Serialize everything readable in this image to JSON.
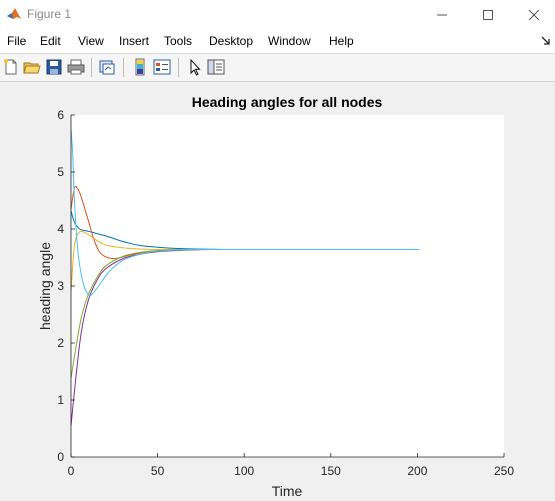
{
  "window": {
    "title": "Figure 1",
    "minimize_icon": "minimize-icon",
    "maximize_icon": "maximize-icon",
    "close_icon": "close-icon"
  },
  "menu": {
    "items": [
      "File",
      "Edit",
      "View",
      "Insert",
      "Tools",
      "Desktop",
      "Window",
      "Help"
    ]
  },
  "toolbar": {
    "icons": [
      "new-figure-icon",
      "open-icon",
      "save-icon",
      "print-icon",
      "link-plot-icon",
      "colorbar-icon",
      "legend-icon",
      "pointer-icon",
      "property-editor-icon"
    ]
  },
  "colors": {
    "series": [
      "#0072BD",
      "#D95319",
      "#EDB120",
      "#7E2F8E",
      "#77AC30",
      "#4DBEEE"
    ]
  },
  "chart_data": {
    "type": "line",
    "title": "Heading angles for all nodes",
    "xlabel": "Time",
    "ylabel": "heading angle",
    "xlim": [
      0,
      250
    ],
    "ylim": [
      0,
      6
    ],
    "xticks": [
      0,
      50,
      100,
      150,
      200,
      250
    ],
    "yticks": [
      0,
      1,
      2,
      3,
      4,
      5,
      6
    ],
    "grid": false,
    "series": [
      {
        "color": "#0072BD",
        "x": [
          0,
          2,
          5,
          10,
          20,
          30,
          40,
          50,
          60,
          80,
          100,
          150,
          201
        ],
        "y": [
          4.32,
          4.12,
          4.0,
          3.96,
          3.88,
          3.78,
          3.71,
          3.68,
          3.66,
          3.645,
          3.64,
          3.64,
          3.64
        ]
      },
      {
        "color": "#D95319",
        "x": [
          0,
          2,
          4,
          6,
          10,
          14,
          18,
          25,
          35,
          50,
          70,
          100,
          150,
          201
        ],
        "y": [
          4.35,
          4.72,
          4.7,
          4.55,
          4.15,
          3.75,
          3.55,
          3.48,
          3.55,
          3.62,
          3.64,
          3.64,
          3.64,
          3.64
        ]
      },
      {
        "color": "#EDB120",
        "x": [
          0,
          2,
          5,
          10,
          15,
          20,
          30,
          40,
          50,
          60,
          80,
          100,
          150,
          201
        ],
        "y": [
          2.9,
          3.7,
          3.95,
          3.9,
          3.8,
          3.72,
          3.67,
          3.65,
          3.64,
          3.64,
          3.64,
          3.64,
          3.64,
          3.64
        ]
      },
      {
        "color": "#7E2F8E",
        "x": [
          0,
          3,
          6,
          10,
          15,
          20,
          30,
          40,
          50,
          60,
          80,
          100,
          150,
          201
        ],
        "y": [
          0.55,
          1.45,
          2.2,
          2.75,
          3.1,
          3.3,
          3.48,
          3.56,
          3.6,
          3.62,
          3.64,
          3.64,
          3.64,
          3.64
        ]
      },
      {
        "color": "#77AC30",
        "x": [
          0,
          3,
          6,
          10,
          15,
          20,
          30,
          40,
          50,
          60,
          80,
          100,
          150,
          201
        ],
        "y": [
          1.38,
          1.95,
          2.45,
          2.85,
          3.15,
          3.35,
          3.52,
          3.59,
          3.62,
          3.63,
          3.64,
          3.64,
          3.64,
          3.64
        ]
      },
      {
        "color": "#4DBEEE",
        "x": [
          0,
          1,
          2,
          4,
          7,
          10,
          12,
          16,
          22,
          30,
          40,
          50,
          70,
          100,
          150,
          201
        ],
        "y": [
          5.75,
          5.3,
          4.5,
          3.6,
          3.05,
          2.85,
          2.85,
          3.0,
          3.25,
          3.45,
          3.56,
          3.61,
          3.64,
          3.64,
          3.64,
          3.64
        ]
      }
    ]
  }
}
